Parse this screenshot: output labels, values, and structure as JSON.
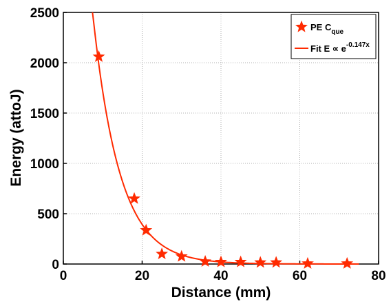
{
  "chart_data": {
    "type": "scatter",
    "title": "",
    "xlabel": "Distance (mm)",
    "ylabel": "Energy (attoJ)",
    "xlim": [
      0,
      80
    ],
    "ylim": [
      0,
      2500
    ],
    "xticks": [
      0,
      20,
      40,
      60,
      80
    ],
    "yticks": [
      0,
      500,
      1000,
      1500,
      2000,
      2500
    ],
    "grid": true,
    "legend_position": "top-right",
    "series": [
      {
        "name": "PE C",
        "name_subscript": "que",
        "marker": "star",
        "color": "#ff2a00",
        "x": [
          9,
          18,
          21,
          25,
          30,
          36,
          40,
          45,
          50,
          54,
          62,
          72
        ],
        "y": [
          2060,
          650,
          335,
          100,
          75,
          25,
          20,
          20,
          15,
          15,
          5,
          5
        ]
      },
      {
        "name": "Fit E ∝ e",
        "name_superscript": "-0.147x",
        "type": "line",
        "color": "#ff2a00",
        "function": {
          "amplitude": 7450,
          "rate": 0.147
        },
        "x_range": [
          7.4,
          75
        ]
      }
    ]
  }
}
